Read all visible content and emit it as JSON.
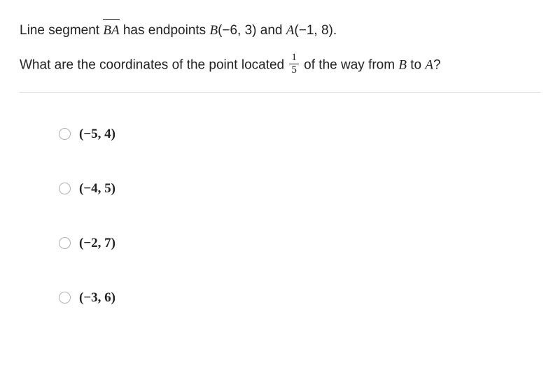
{
  "question": {
    "line1_part1": "Line segment ",
    "segment": "BA",
    "line1_part2": " has endpoints ",
    "pointB_var": "B",
    "pointB_coords": "(−6, 3)",
    "line1_and": " and ",
    "pointA_var": "A",
    "pointA_coords": "(−1, 8)",
    "line1_end": ".",
    "line2_part1": "What are the coordinates of the point located ",
    "fraction": {
      "num": "1",
      "den": "5"
    },
    "line2_part2": " of the way from ",
    "fromVar": "B",
    "line2_to": " to ",
    "toVar": "A",
    "line2_end": "?"
  },
  "options": [
    {
      "text": "(−5, 4)"
    },
    {
      "text": "(−4, 5)"
    },
    {
      "text": "(−2, 7)"
    },
    {
      "text": "(−3, 6)"
    }
  ],
  "styling": {
    "background_color": "#ffffff",
    "text_color": "#222222",
    "divider_color": "#e0e0e0",
    "radio_border_color": "#b0b0b0",
    "body_fontsize": 19,
    "option_fontsize": 19,
    "fraction_fontsize": 15,
    "option_spacing": 56,
    "options_left_pad": 56
  }
}
